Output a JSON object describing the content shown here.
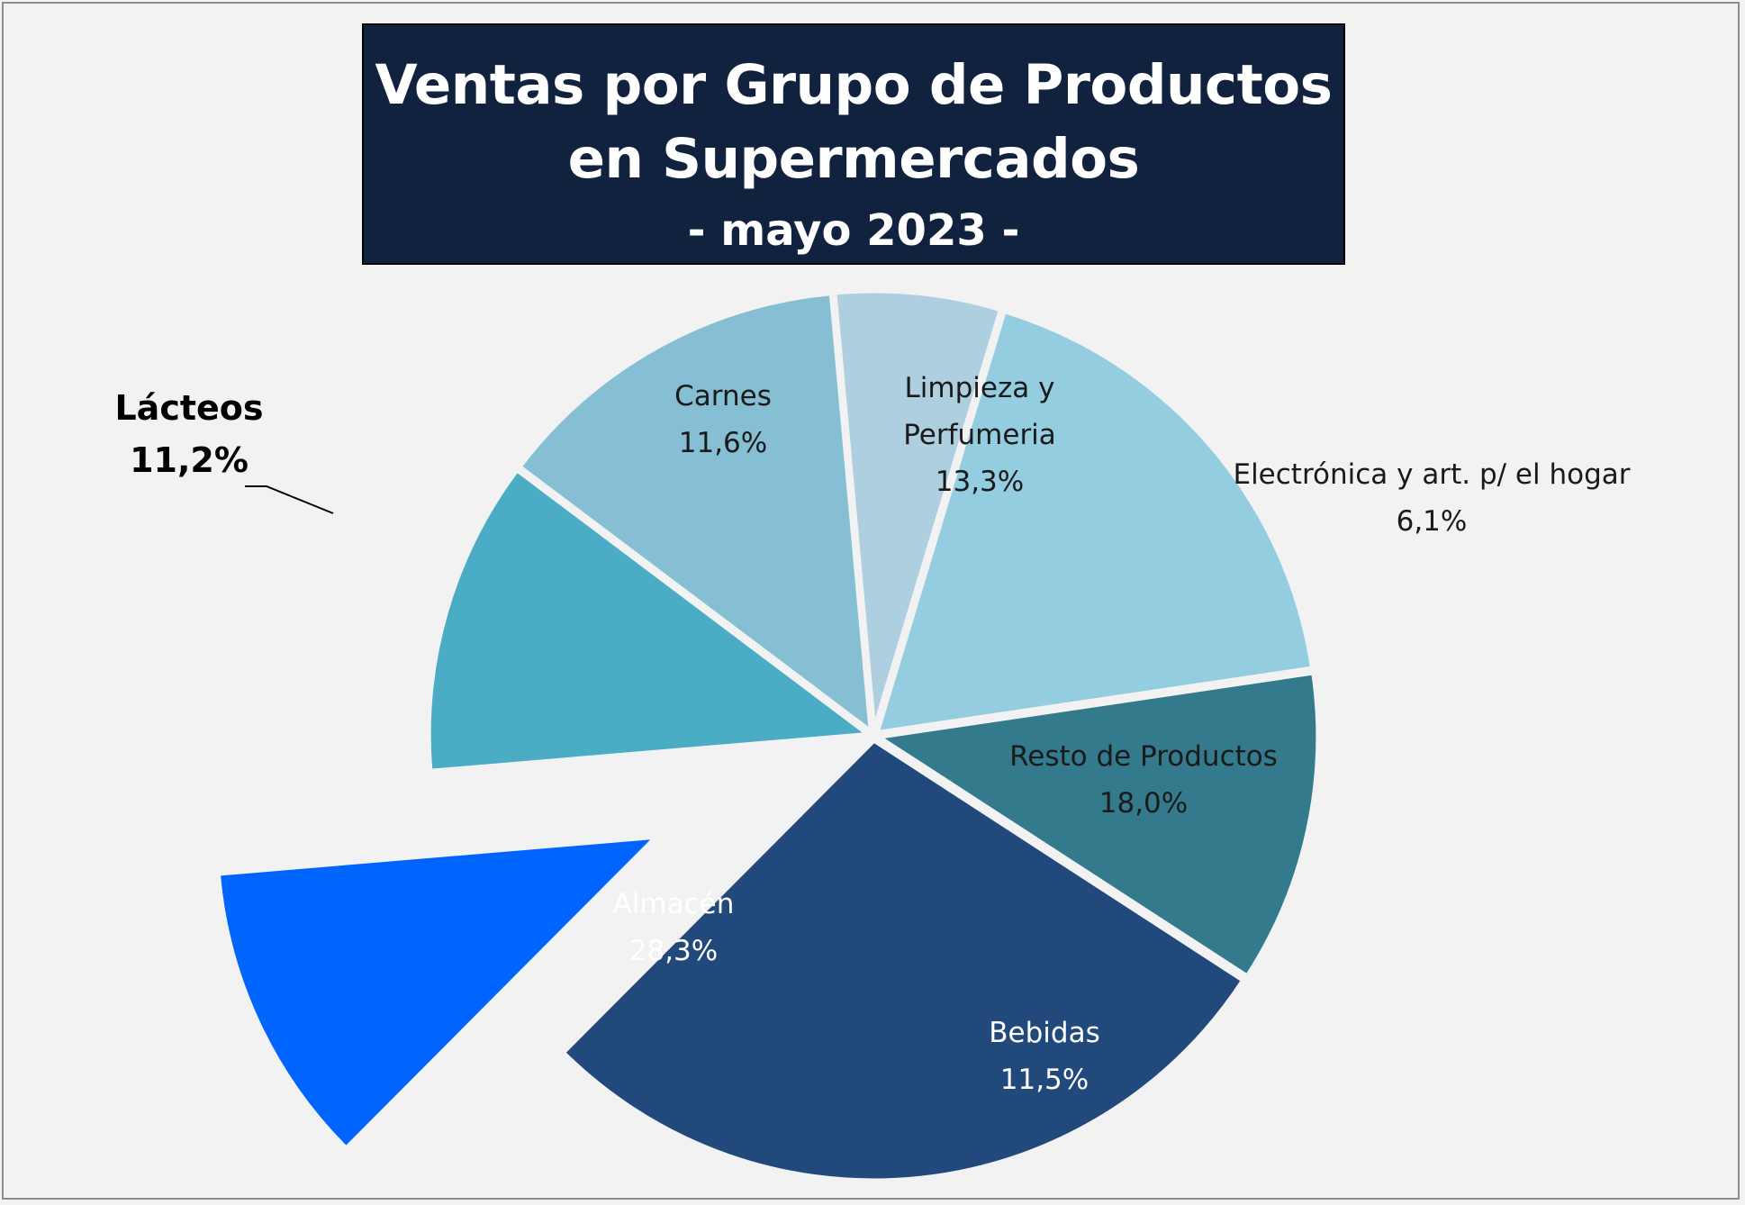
{
  "chart_data": {
    "type": "pie",
    "title": "Ventas por Grupo de Productos en Supermercados",
    "subtitle": "- mayo 2023 -",
    "unit": "%",
    "slices": [
      {
        "name": "Carnes",
        "value": 11.6,
        "value_label": "11,6%",
        "color": "#4bacc6",
        "label_color": "#1a1a1a",
        "exploded": false
      },
      {
        "name": "Limpieza y Perfumeria",
        "value": 13.3,
        "value_label": "13,3%",
        "color": "#86bfd3",
        "label_color": "#1a1a1a",
        "exploded": false
      },
      {
        "name": "Electrónica y art. p/ el hogar",
        "value": 6.1,
        "value_label": "6,1%",
        "color": "#aecfdf",
        "label_color": "#1a1a1a",
        "exploded": false
      },
      {
        "name": "Resto de Productos",
        "value": 18.0,
        "value_label": "18,0%",
        "color": "#93cddf",
        "label_color": "#1a1a1a",
        "exploded": false
      },
      {
        "name": "Bebidas",
        "value": 11.5,
        "value_label": "11,5%",
        "color": "#347a8d",
        "label_color": "#ffffff",
        "exploded": false
      },
      {
        "name": "Almacén",
        "value": 28.3,
        "value_label": "28,3%",
        "color": "#21497c",
        "label_color": "#ffffff",
        "exploded": false
      },
      {
        "name": "Lácteos",
        "value": 11.2,
        "value_label": "11,2%",
        "color": "#0064ff",
        "label_color": "#000000",
        "exploded": true
      }
    ],
    "legend": "none",
    "label_position": "inside (outside for Electrónica y art. p/ el hogar and Lácteos)"
  }
}
